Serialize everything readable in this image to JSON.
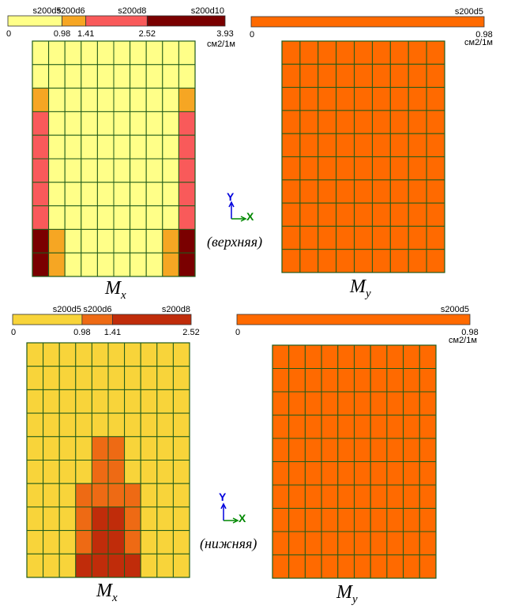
{
  "unit": "см2/1м",
  "colors": {
    "grid": "#1f5a1a",
    "legend_border": "#333333",
    "axis_y": "#0000dd",
    "axis_x": "#008800"
  },
  "sections": [
    {
      "id": "top",
      "layer": "(верхняя)",
      "axis": {
        "y": "Y",
        "x": "X"
      },
      "mx": {
        "label": "M",
        "sub": "x",
        "legend": {
          "ticks": [
            "0",
            "0.98",
            "1.41",
            "2.52",
            "3.93"
          ],
          "tick_values": [
            0,
            0.98,
            1.41,
            2.52,
            3.93
          ],
          "names": [
            "s200d5",
            "s200d6",
            "s200d8",
            "s200d10"
          ],
          "colors": [
            "#ffff88",
            "#f6a623",
            "#f95a5a",
            "#7a0000"
          ]
        },
        "grid": {
          "rows": 10,
          "cols": 10,
          "cells": [
            [
              0,
              0,
              0,
              0,
              0,
              0,
              0,
              0,
              0,
              0
            ],
            [
              0,
              0,
              0,
              0,
              0,
              0,
              0,
              0,
              0,
              0
            ],
            [
              1,
              0,
              0,
              0,
              0,
              0,
              0,
              0,
              0,
              1
            ],
            [
              2,
              0,
              0,
              0,
              0,
              0,
              0,
              0,
              0,
              2
            ],
            [
              2,
              0,
              0,
              0,
              0,
              0,
              0,
              0,
              0,
              2
            ],
            [
              2,
              0,
              0,
              0,
              0,
              0,
              0,
              0,
              0,
              2
            ],
            [
              2,
              0,
              0,
              0,
              0,
              0,
              0,
              0,
              0,
              2
            ],
            [
              2,
              0,
              0,
              0,
              0,
              0,
              0,
              0,
              0,
              2
            ],
            [
              3,
              1,
              0,
              0,
              0,
              0,
              0,
              0,
              1,
              3
            ],
            [
              3,
              1,
              0,
              0,
              0,
              0,
              0,
              0,
              1,
              3
            ]
          ]
        }
      },
      "my": {
        "label": "M",
        "sub": "y",
        "legend": {
          "ticks": [
            "0",
            "0.98"
          ],
          "tick_values": [
            0,
            0.98
          ],
          "names": [
            "s200d5"
          ],
          "colors": [
            "#ff6a00"
          ]
        },
        "grid": {
          "rows": 10,
          "cols": 9,
          "fill": 0
        }
      }
    },
    {
      "id": "bottom",
      "layer": "(нижняя)",
      "axis": {
        "y": "Y",
        "x": "X"
      },
      "mx": {
        "label": "M",
        "sub": "x",
        "legend": {
          "ticks": [
            "0",
            "0.98",
            "1.41",
            "2.52"
          ],
          "tick_values": [
            0,
            0.98,
            1.41,
            2.52
          ],
          "names": [
            "s200d5",
            "s200d6",
            "s200d8"
          ],
          "colors": [
            "#f8d43a",
            "#ee6a14",
            "#c02c0a"
          ]
        },
        "grid": {
          "rows": 10,
          "cols": 10,
          "cells": [
            [
              0,
              0,
              0,
              0,
              0,
              0,
              0,
              0,
              0,
              0
            ],
            [
              0,
              0,
              0,
              0,
              0,
              0,
              0,
              0,
              0,
              0
            ],
            [
              0,
              0,
              0,
              0,
              0,
              0,
              0,
              0,
              0,
              0
            ],
            [
              0,
              0,
              0,
              0,
              0,
              0,
              0,
              0,
              0,
              0
            ],
            [
              0,
              0,
              0,
              0,
              1,
              1,
              0,
              0,
              0,
              0
            ],
            [
              0,
              0,
              0,
              0,
              1,
              1,
              0,
              0,
              0,
              0
            ],
            [
              0,
              0,
              0,
              1,
              1,
              1,
              1,
              0,
              0,
              0
            ],
            [
              0,
              0,
              0,
              1,
              2,
              2,
              1,
              0,
              0,
              0
            ],
            [
              0,
              0,
              0,
              1,
              2,
              2,
              1,
              0,
              0,
              0
            ],
            [
              0,
              0,
              0,
              2,
              2,
              2,
              2,
              0,
              0,
              0
            ]
          ]
        }
      },
      "my": {
        "label": "M",
        "sub": "y",
        "legend": {
          "ticks": [
            "0",
            "0.98"
          ],
          "tick_values": [
            0,
            0.98
          ],
          "names": [
            "s200d5"
          ],
          "colors": [
            "#ff6a00"
          ]
        },
        "grid": {
          "rows": 10,
          "cols": 10,
          "fill": 0
        }
      }
    }
  ]
}
